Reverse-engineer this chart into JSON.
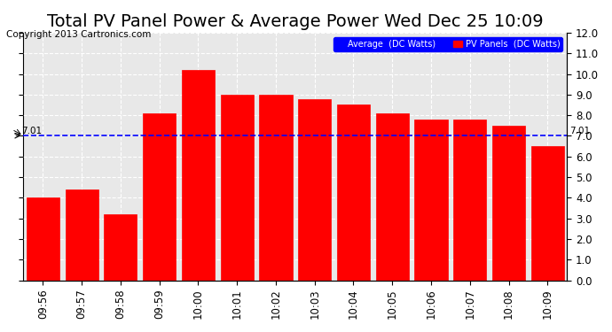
{
  "title": "Total PV Panel Power & Average Power Wed Dec 25 10:09",
  "copyright": "Copyright 2013 Cartronics.com",
  "categories": [
    "09:56",
    "09:57",
    "09:58",
    "09:59",
    "10:00",
    "10:01",
    "10:02",
    "10:03",
    "10:04",
    "10:05",
    "10:06",
    "10:07",
    "10:08",
    "10:09"
  ],
  "values": [
    4.0,
    4.4,
    3.2,
    8.1,
    10.2,
    9.0,
    9.0,
    8.8,
    8.5,
    8.1,
    7.8,
    7.8,
    7.5,
    6.5
  ],
  "average": 7.01,
  "bar_color": "#ff0000",
  "avg_color": "#0000ff",
  "bg_color": "#ffffff",
  "plot_bg_color": "#e8e8e8",
  "grid_color": "#ffffff",
  "ylim": [
    0.0,
    12.0
  ],
  "yticks": [
    0.0,
    1.0,
    2.0,
    3.0,
    4.0,
    5.0,
    6.0,
    7.0,
    8.0,
    9.0,
    10.0,
    11.0,
    12.0
  ],
  "legend_avg_label": "Average  (DC Watts)",
  "legend_pv_label": "PV Panels  (DC Watts)",
  "avg_annotation": "7.01",
  "title_fontsize": 14,
  "tick_fontsize": 8.5,
  "copyright_fontsize": 7.5
}
